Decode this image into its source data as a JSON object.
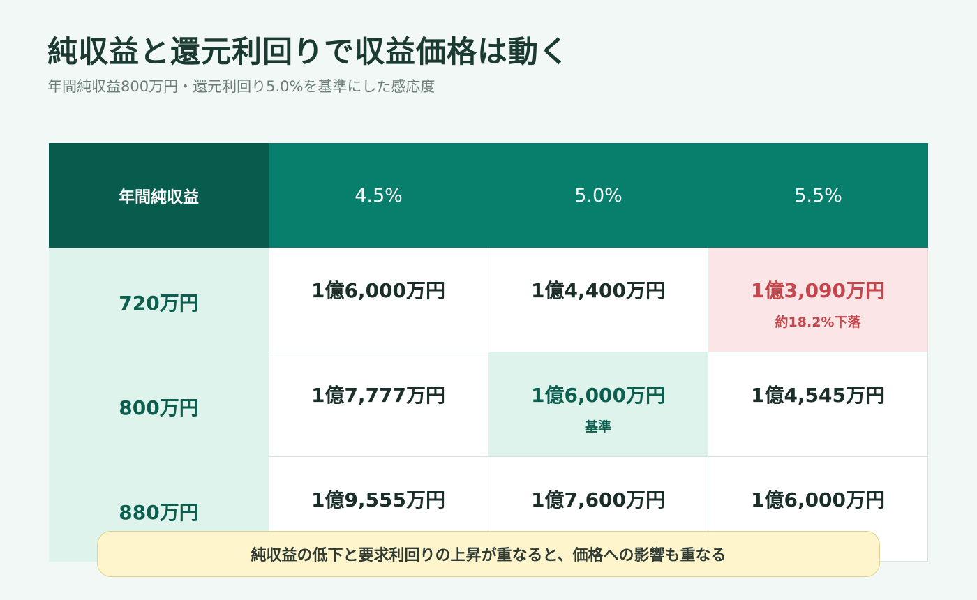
{
  "title": "純収益と還元利回りで収益価格は動く",
  "subtitle": "年間純収益800万円・還元利回り5.0%を基準にした感応度",
  "table": {
    "corner_label": "年間純収益",
    "columns": [
      "4.5%",
      "5.0%",
      "5.5%"
    ],
    "rows": [
      {
        "label": "720万円",
        "cells": [
          {
            "value": "1億6,000万円",
            "note": ""
          },
          {
            "value": "1億4,400万円",
            "note": ""
          },
          {
            "value": "1億3,090万円",
            "note": "約18.2%下落"
          }
        ]
      },
      {
        "label": "800万円",
        "cells": [
          {
            "value": "1億7,777万円",
            "note": ""
          },
          {
            "value": "1億6,000万円",
            "note": "基準"
          },
          {
            "value": "1億4,545万円",
            "note": ""
          }
        ]
      },
      {
        "label": "880万円",
        "cells": [
          {
            "value": "1億9,555万円",
            "note": ""
          },
          {
            "value": "1億7,600万円",
            "note": ""
          },
          {
            "value": "1億6,000万円",
            "note": ""
          }
        ]
      }
    ]
  },
  "callout": "純収益の低下と要求利回りの上昇が重なると、価格への影響も重なる",
  "colors": {
    "header_dark": "#075c4d",
    "header": "#087f6c",
    "row_header_bg": "#ddf3ec",
    "decline_bg": "#fce5e6",
    "decline_text": "#c5464b",
    "base_bg": "#ddf3ec",
    "callout_bg": "#fef5cc"
  }
}
